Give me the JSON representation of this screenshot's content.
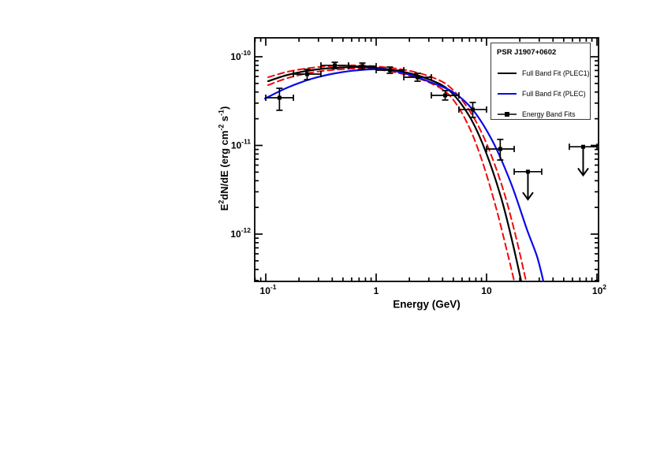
{
  "window": {
    "background": "#ffffff"
  },
  "axes": {
    "xlabel": "Energy (GeV)",
    "ylabel_parts": [
      {
        "t": "E"
      },
      {
        "s": "2"
      },
      {
        "t": "dN/dE (erg cm"
      },
      {
        "s": "-2"
      },
      {
        "t": " s"
      },
      {
        "s": "-1"
      },
      {
        "t": ")"
      }
    ]
  },
  "legend": {
    "title": "PSR J1907+0602",
    "entries": [
      {
        "label": "Full Band Fit (PLEC1)",
        "color": "#000000",
        "style": "line"
      },
      {
        "label": "Full Band Fit (PLEC)",
        "color": "#0a0ae8",
        "style": "line"
      },
      {
        "label": "Energy Band Fits",
        "color": "#000000",
        "style": "line-marker"
      }
    ]
  },
  "chart_data": {
    "type": "line",
    "title": "PSR J1907+0602 gamma-ray spectral energy distribution",
    "xlabel": "Energy (GeV)",
    "ylabel": "E^2 dN/dE (erg cm^-2 s^-1)",
    "xscale": "log",
    "yscale": "log",
    "xlim": [
      0.0794,
      103.4
    ],
    "ylim": [
      2.93e-13,
      1.634e-10
    ],
    "grid": false,
    "legend_position": "upper right",
    "x_ticks": [
      {
        "value": 0.1,
        "base": "10",
        "exp": "-1"
      },
      {
        "value": 1,
        "base": "1",
        "exp": ""
      },
      {
        "value": 10,
        "base": "10",
        "exp": ""
      },
      {
        "value": 100,
        "base": "10",
        "exp": "2"
      }
    ],
    "y_ticks": [
      {
        "value": 1e-10,
        "base": "10",
        "exp": "-10"
      },
      {
        "value": 1e-11,
        "base": "10",
        "exp": "-11"
      },
      {
        "value": 1e-12,
        "base": "10",
        "exp": "-12"
      }
    ],
    "series": [
      {
        "key": "plec1-upper-band",
        "name": "PLEC1 fit +1 sigma band",
        "color": "#ee0b0b",
        "dash": "8 5",
        "width": 2.0,
        "points": [
          [
            0.105,
            5.87e-11
          ],
          [
            0.158,
            6.78e-11
          ],
          [
            0.26,
            7.51e-11
          ],
          [
            0.425,
            7.9e-11
          ],
          [
            0.697,
            7.98e-11
          ],
          [
            1.14,
            7.66e-11
          ],
          [
            1.87,
            7.06e-11
          ],
          [
            3.06,
            5.99e-11
          ],
          [
            4.62,
            4.59e-11
          ],
          [
            6.97,
            2.49e-11
          ],
          [
            10.0,
            1.05e-11
          ],
          [
            14.1,
            3.21e-12
          ],
          [
            18.4,
            9.4e-13
          ],
          [
            22.8,
            2.95e-13
          ]
        ]
      },
      {
        "key": "plec1-lower-band",
        "name": "PLEC1 fit -1 sigma band",
        "color": "#ee0b0b",
        "dash": "8 5",
        "width": 2.0,
        "points": [
          [
            0.105,
            4.79e-11
          ],
          [
            0.158,
            5.75e-11
          ],
          [
            0.26,
            6.64e-11
          ],
          [
            0.425,
            7.13e-11
          ],
          [
            0.697,
            7.36e-11
          ],
          [
            1.14,
            7.06e-11
          ],
          [
            1.87,
            6.24e-11
          ],
          [
            3.06,
            5.09e-11
          ],
          [
            4.62,
            3.67e-11
          ],
          [
            6.62,
            1.83e-11
          ],
          [
            8.91,
            7.28e-12
          ],
          [
            12.0,
            2.13e-12
          ],
          [
            15.3,
            6.5e-13
          ],
          [
            17.8,
            2.95e-13
          ]
        ]
      },
      {
        "key": "plec1-fit",
        "name": "Full Band Fit (PLEC1)",
        "color": "#000000",
        "dash": "",
        "width": 2.2,
        "points": [
          [
            0.105,
            5.3e-11
          ],
          [
            0.158,
            6.24e-11
          ],
          [
            0.26,
            7.06e-11
          ],
          [
            0.425,
            7.51e-11
          ],
          [
            0.697,
            7.66e-11
          ],
          [
            1.14,
            7.36e-11
          ],
          [
            1.87,
            6.64e-11
          ],
          [
            3.06,
            5.52e-11
          ],
          [
            4.62,
            4.15e-11
          ],
          [
            6.97,
            2.15e-11
          ],
          [
            9.68,
            8.94e-12
          ],
          [
            13.5,
            2.62e-12
          ],
          [
            17.2,
            7.98e-13
          ],
          [
            20.6,
            2.95e-13
          ]
        ]
      },
      {
        "key": "plec-fit",
        "name": "Full Band Fit (PLEC)",
        "color": "#0a0ae8",
        "dash": "",
        "width": 2.2,
        "points": [
          [
            0.0984,
            3.38e-11
          ],
          [
            0.158,
            4.5e-11
          ],
          [
            0.26,
            5.64e-11
          ],
          [
            0.425,
            6.5e-11
          ],
          [
            0.697,
            7.06e-11
          ],
          [
            1.14,
            7.21e-11
          ],
          [
            1.87,
            6.43e-11
          ],
          [
            3.06,
            5.2e-11
          ],
          [
            4.99,
            3.98e-11
          ],
          [
            7.57,
            2.49e-11
          ],
          [
            11.4,
            1.1e-11
          ],
          [
            16.6,
            3.78e-12
          ],
          [
            23.1,
            1.15e-12
          ],
          [
            28.6,
            5.64e-13
          ],
          [
            32.7,
            2.95e-13
          ]
        ]
      }
    ],
    "points_name": "Energy Band Fits",
    "points": [
      {
        "E": 0.133,
        "E_lo": 0.1,
        "E_hi": 0.178,
        "F": 3.45e-11,
        "F_lo": 2.49e-11,
        "F_hi": 4.41e-11
      },
      {
        "E": 0.237,
        "E_lo": 0.178,
        "E_hi": 0.316,
        "F": 6.37e-11,
        "F_lo": 5.52e-11,
        "F_hi": 7.21e-11
      },
      {
        "E": 0.422,
        "E_lo": 0.316,
        "E_hi": 0.562,
        "F": 7.99e-11,
        "F_lo": 7.36e-11,
        "F_hi": 8.67e-11
      },
      {
        "E": 0.75,
        "E_lo": 0.562,
        "E_hi": 1.0,
        "F": 7.83e-11,
        "F_lo": 7.21e-11,
        "F_hi": 8.49e-11
      },
      {
        "E": 1.33,
        "E_lo": 1.0,
        "E_hi": 1.78,
        "F": 7.05e-11,
        "F_lo": 6.5e-11,
        "F_hi": 7.66e-11
      },
      {
        "E": 2.37,
        "E_lo": 1.78,
        "E_hi": 3.16,
        "F": 5.87e-11,
        "F_lo": 5.3e-11,
        "F_hi": 6.5e-11
      },
      {
        "E": 4.22,
        "E_lo": 3.16,
        "E_hi": 5.62,
        "F": 3.67e-11,
        "F_lo": 3.25e-11,
        "F_hi": 4.15e-11
      },
      {
        "E": 7.5,
        "E_lo": 5.62,
        "E_hi": 10.0,
        "F": 2.54e-11,
        "F_lo": 2.07e-11,
        "F_hi": 3.05e-11
      },
      {
        "E": 13.3,
        "E_lo": 10.0,
        "E_hi": 17.8,
        "F": 9.12e-12,
        "F_lo": 6.85e-12,
        "F_hi": 1.17e-11
      }
    ],
    "upper_limits": [
      {
        "E": 23.7,
        "E_lo": 17.8,
        "E_hi": 31.6,
        "F": 5.06e-12,
        "arrow_to": 2.46e-12
      },
      {
        "E": 75.0,
        "E_lo": 56.2,
        "E_hi": 100.0,
        "F": 9.66e-12,
        "arrow_to": 4.6e-12
      }
    ]
  }
}
